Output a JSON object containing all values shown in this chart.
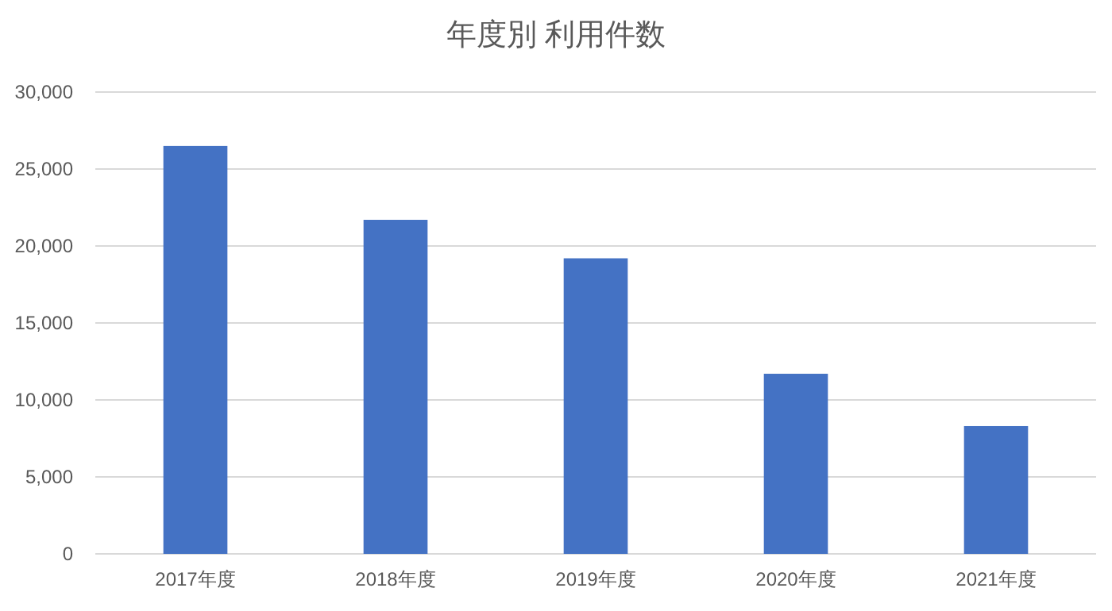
{
  "chart_data": {
    "type": "bar",
    "title": "年度別 利用件数",
    "categories": [
      "2017年度",
      "2018年度",
      "2019年度",
      "2020年度",
      "2021年度"
    ],
    "values": [
      26500,
      21700,
      19200,
      11700,
      8300
    ],
    "color": "#4472c4",
    "ylim": [
      0,
      30000
    ],
    "yticks": [
      {
        "value": 0,
        "label": "0"
      },
      {
        "value": 5000,
        "label": "5,000"
      },
      {
        "value": 10000,
        "label": "10,000"
      },
      {
        "value": 15000,
        "label": "15,000"
      },
      {
        "value": 20000,
        "label": "20,000"
      },
      {
        "value": 25000,
        "label": "25,000"
      },
      {
        "value": 30000,
        "label": "30,000"
      }
    ],
    "grid": "y"
  }
}
